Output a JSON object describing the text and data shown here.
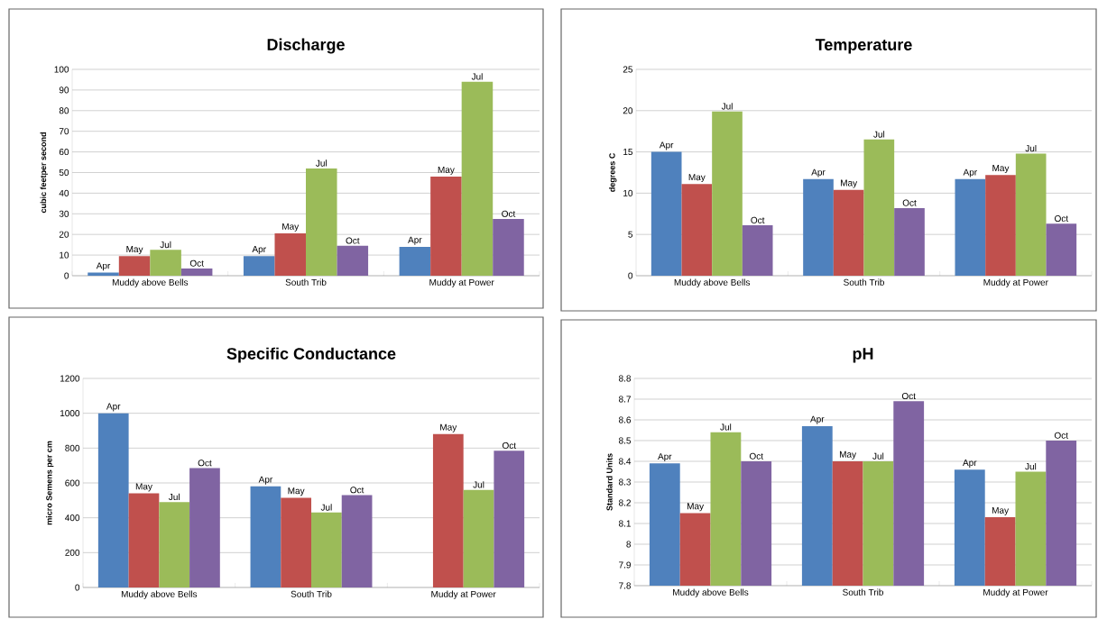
{
  "chart_data": [
    {
      "type": "bar",
      "title": "Discharge",
      "ylabel": "cubic feetper second",
      "categories": [
        "Muddy above Bells",
        "South Trib",
        "Muddy at Power"
      ],
      "ylim": [
        0,
        100
      ],
      "yticks": [
        0,
        10,
        20,
        30,
        40,
        50,
        60,
        70,
        80,
        90,
        100
      ],
      "grid": "y",
      "series": [
        {
          "name": "Apr",
          "color": "#4f81bd",
          "values": [
            1.5,
            9.5,
            14
          ]
        },
        {
          "name": "May",
          "color": "#c0504d",
          "values": [
            9.5,
            20.5,
            48
          ]
        },
        {
          "name": "Jul",
          "color": "#9bbb59",
          "values": [
            12.5,
            52,
            94
          ]
        },
        {
          "name": "Oct",
          "color": "#8064a2",
          "values": [
            3.5,
            14.5,
            27.5
          ]
        }
      ]
    },
    {
      "type": "bar",
      "title": "Temperature",
      "ylabel": "degrees C",
      "categories": [
        "Muddy above Bells",
        "South Trib",
        "Muddy at Power"
      ],
      "ylim": [
        0,
        25
      ],
      "yticks": [
        0,
        5,
        10,
        15,
        20,
        25
      ],
      "grid": "y",
      "series": [
        {
          "name": "Apr",
          "color": "#4f81bd",
          "values": [
            15,
            11.7,
            11.7
          ]
        },
        {
          "name": "May",
          "color": "#c0504d",
          "values": [
            11.1,
            10.4,
            12.2
          ]
        },
        {
          "name": "Jul",
          "color": "#9bbb59",
          "values": [
            19.9,
            16.5,
            14.8
          ]
        },
        {
          "name": "Oct",
          "color": "#8064a2",
          "values": [
            6.1,
            8.2,
            6.3
          ]
        }
      ]
    },
    {
      "type": "bar",
      "title": "Specific Conductance",
      "ylabel": "micro Semens per cm",
      "categories": [
        "Muddy above Bells",
        "South Trib",
        "Muddy at Power"
      ],
      "ylim": [
        0,
        1200
      ],
      "yticks": [
        0,
        200,
        400,
        600,
        800,
        1000,
        1200
      ],
      "grid": "y",
      "series": [
        {
          "name": "Apr",
          "color": "#4f81bd",
          "values": [
            1000,
            580,
            null
          ]
        },
        {
          "name": "May",
          "color": "#c0504d",
          "values": [
            540,
            515,
            880
          ]
        },
        {
          "name": "Jul",
          "color": "#9bbb59",
          "values": [
            490,
            430,
            560
          ]
        },
        {
          "name": "Oct",
          "color": "#8064a2",
          "values": [
            685,
            530,
            785
          ]
        }
      ]
    },
    {
      "type": "bar",
      "title": "pH",
      "ylabel": "Standard Units",
      "categories": [
        "Muddy above Bells",
        "South Trib",
        "Muddy at Power"
      ],
      "ylim": [
        7.8,
        8.8
      ],
      "yticks": [
        7.8,
        7.9,
        8,
        8.1,
        8.2,
        8.3,
        8.4,
        8.5,
        8.6,
        8.7,
        8.8
      ],
      "grid": "y",
      "series": [
        {
          "name": "Apr",
          "color": "#4f81bd",
          "values": [
            8.39,
            8.57,
            8.36
          ]
        },
        {
          "name": "May",
          "color": "#c0504d",
          "values": [
            8.15,
            8.4,
            8.13
          ]
        },
        {
          "name": "Jul",
          "color": "#9bbb59",
          "values": [
            8.54,
            8.4,
            8.35
          ]
        },
        {
          "name": "Oct",
          "color": "#8064a2",
          "values": [
            8.4,
            8.69,
            8.5
          ]
        }
      ]
    }
  ]
}
